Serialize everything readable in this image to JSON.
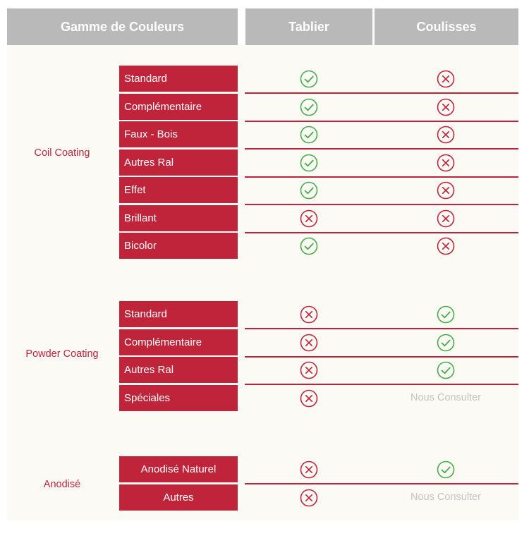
{
  "header": {
    "col1": "Gamme de Couleurs",
    "col2": "Tablier",
    "col3": "Coulisses"
  },
  "groups": [
    {
      "label": "Coil Coating",
      "rows": [
        {
          "name": "Standard",
          "tablier": "check",
          "coulisses": "cross"
        },
        {
          "name": "Complémentaire",
          "tablier": "check",
          "coulisses": "cross"
        },
        {
          "name": "Faux - Bois",
          "tablier": "check",
          "coulisses": "cross"
        },
        {
          "name": "Autres Ral",
          "tablier": "check",
          "coulisses": "cross"
        },
        {
          "name": "Effet",
          "tablier": "check",
          "coulisses": "cross"
        },
        {
          "name": "Brillant",
          "tablier": "cross",
          "coulisses": "cross"
        },
        {
          "name": "Bicolor",
          "tablier": "check",
          "coulisses": "cross"
        }
      ]
    },
    {
      "label": "Powder Coating",
      "rows": [
        {
          "name": "Standard",
          "tablier": "cross",
          "coulisses": "check"
        },
        {
          "name": "Complémentaire",
          "tablier": "cross",
          "coulisses": "check"
        },
        {
          "name": "Autres Ral",
          "tablier": "cross",
          "coulisses": "check"
        },
        {
          "name": "Spéciales",
          "tablier": "cross",
          "coulisses": "Nous Consulter"
        }
      ]
    },
    {
      "label": "Anodisé",
      "rows": [
        {
          "name": "Anodisé Naturel",
          "tablier": "cross",
          "coulisses": "check"
        },
        {
          "name": "Autres",
          "tablier": "cross",
          "coulisses": "Nous Consulter"
        }
      ]
    }
  ],
  "colors": {
    "accent": "#c0243a",
    "check": "#4aab4a",
    "cross": "#c0243a",
    "header_bg": "#b9b9b9",
    "muted_text": "#c4c4c4"
  },
  "icons": {
    "check": "check-circle-icon",
    "cross": "cross-circle-icon"
  }
}
